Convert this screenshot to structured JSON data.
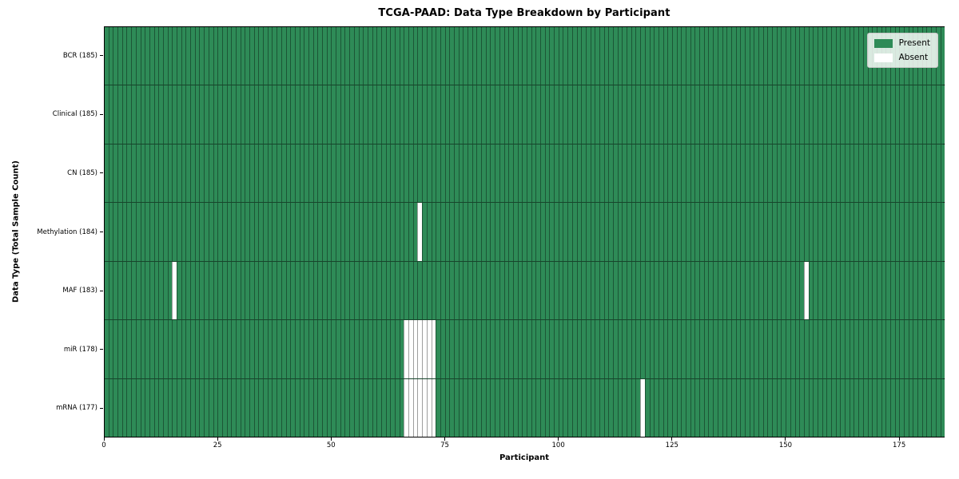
{
  "chart_data": {
    "type": "heatmap",
    "title": "TCGA-PAAD: Data Type Breakdown by Participant",
    "xlabel": "Participant",
    "ylabel": "Data Type (Total Sample Count)",
    "x_ticks": [
      0,
      25,
      50,
      75,
      100,
      125,
      150,
      175
    ],
    "x_range": [
      0,
      185
    ],
    "n_participants": 185,
    "legend_position": "upper right",
    "legend": [
      {
        "label": "Present",
        "color": "#2e8b57"
      },
      {
        "label": "Absent",
        "color": "#ffffff"
      }
    ],
    "rows": [
      {
        "label": "BCR (185)",
        "data_type": "BCR",
        "total": 185,
        "absent_participants": []
      },
      {
        "label": "Clinical (185)",
        "data_type": "Clinical",
        "total": 185,
        "absent_participants": []
      },
      {
        "label": "CN (185)",
        "data_type": "CN",
        "total": 185,
        "absent_participants": []
      },
      {
        "label": "Methylation (184)",
        "data_type": "Methylation",
        "total": 184,
        "absent_participants": [
          69
        ]
      },
      {
        "label": "MAF (183)",
        "data_type": "MAF",
        "total": 183,
        "absent_participants": [
          15,
          154
        ]
      },
      {
        "label": "miR (178)",
        "data_type": "miR",
        "total": 178,
        "absent_participants": [
          66,
          67,
          68,
          69,
          70,
          71,
          72
        ]
      },
      {
        "label": "mRNA (177)",
        "data_type": "mRNA",
        "total": 177,
        "absent_participants": [
          66,
          67,
          68,
          69,
          70,
          71,
          72,
          118
        ]
      }
    ],
    "colors": {
      "present": "#2e8b57",
      "absent": "#ffffff",
      "plot_border": "#000000",
      "legend_background": "#f2f6f2"
    }
  }
}
